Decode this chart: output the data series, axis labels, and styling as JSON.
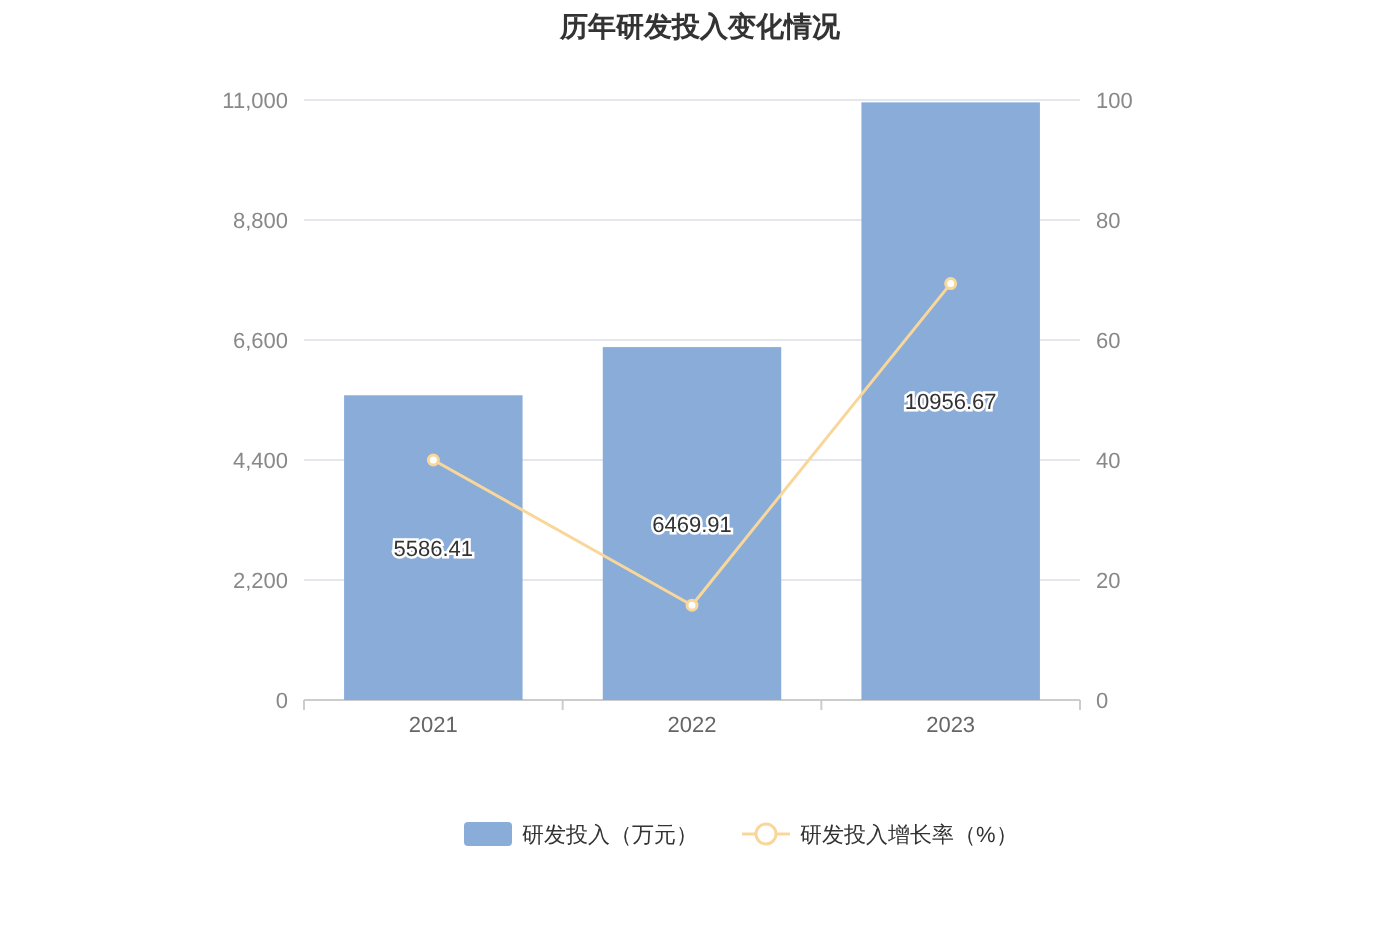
{
  "chart_data": {
    "type": "bar",
    "title": "历年研发投入变化情况",
    "categories": [
      "2021",
      "2022",
      "2023"
    ],
    "series": [
      {
        "name": "研发投入（万元）",
        "color": "#8aacd9",
        "values": [
          5586.41,
          6469.91,
          10956.67
        ],
        "value_labels": [
          "5586.41",
          "6469.91",
          "10956.67"
        ]
      },
      {
        "name": "研发投入增长率（%）",
        "type": "line",
        "axis": "y2",
        "color": "#f9d79b",
        "values": [
          40.0,
          15.8,
          69.4
        ]
      }
    ],
    "ylim": [
      0,
      11000
    ],
    "yticks": [
      0,
      {
        "value": 2200,
        "label": "2,200"
      },
      {
        "value": 4400,
        "label": "4,400"
      },
      {
        "value": 6600,
        "label": "6,600"
      },
      {
        "value": 8800,
        "label": "8,800"
      },
      {
        "value": 11000,
        "label": "11,000"
      }
    ],
    "y2lim": [
      0,
      100
    ],
    "y2ticks": [
      0,
      20,
      40,
      60,
      80,
      100
    ],
    "grid": "y",
    "legend": "bottom",
    "marker": "circle"
  }
}
